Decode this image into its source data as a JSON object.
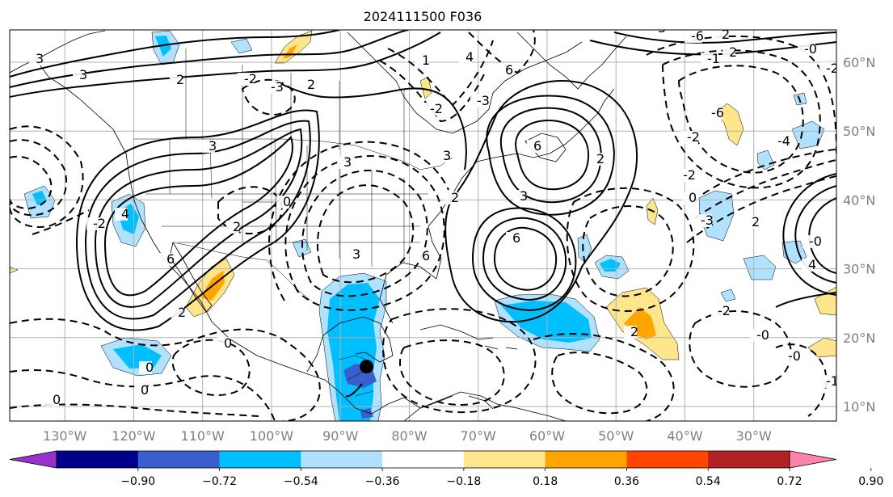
{
  "title": "2024111500 F036",
  "lat_labels": [
    "60°N",
    "50°N",
    "40°N",
    "30°N",
    "20°N",
    "10°N"
  ],
  "lat_values": [
    60,
    50,
    40,
    30,
    20,
    10
  ],
  "lon_labels": [
    "130°W",
    "120°W",
    "110°W",
    "100°W",
    "90°W",
    "80°W",
    "70°W",
    "60°W",
    "50°W",
    "40°W",
    "30°W"
  ],
  "lon_values": [
    -130,
    -120,
    -110,
    -100,
    -90,
    -80,
    -70,
    -60,
    -50,
    -40,
    -30
  ],
  "extent": {
    "lon_min": -138,
    "lon_max": -18,
    "lat_min": 8,
    "lat_max": 65
  },
  "colorbar": {
    "ticks": [
      "−0.90",
      "−0.72",
      "−0.54",
      "−0.36",
      "−0.18",
      "0.18",
      "0.36",
      "0.54",
      "0.72",
      "0.90"
    ],
    "colors": [
      "#9932cc",
      "#00008b",
      "#3a5fcd",
      "#00bfff",
      "#b0e2ff",
      "#ffffff",
      "#ffe68c",
      "#ffa500",
      "#ff4500",
      "#b22222",
      "#ff82ab"
    ],
    "extend": "both"
  },
  "contour_labels": [
    "3",
    "3",
    "2",
    "2",
    "3",
    "6",
    "2",
    "3",
    "6",
    "3",
    "6",
    "0",
    "0",
    "2",
    "4",
    "3",
    "-3",
    "0",
    "0",
    "0",
    "-2",
    "2",
    "3",
    "6",
    "6",
    "-2",
    "-3",
    "4",
    "1",
    "-2",
    "2",
    "-2",
    "0",
    "-3",
    "-2",
    "2",
    "-0",
    "-2",
    "-0",
    "-1.0",
    "-0",
    "-2",
    "2",
    "-6",
    "3",
    "-6",
    "2",
    "-4",
    "-1",
    "4",
    "2",
    "-0"
  ],
  "marker": {
    "lon": -86.2,
    "lat": 15.8,
    "color": "#000000"
  },
  "colors": {
    "contour": "#000000",
    "grid": "#b0b0b0",
    "coast": "#000000",
    "tick_label": "#7f7f7f"
  }
}
